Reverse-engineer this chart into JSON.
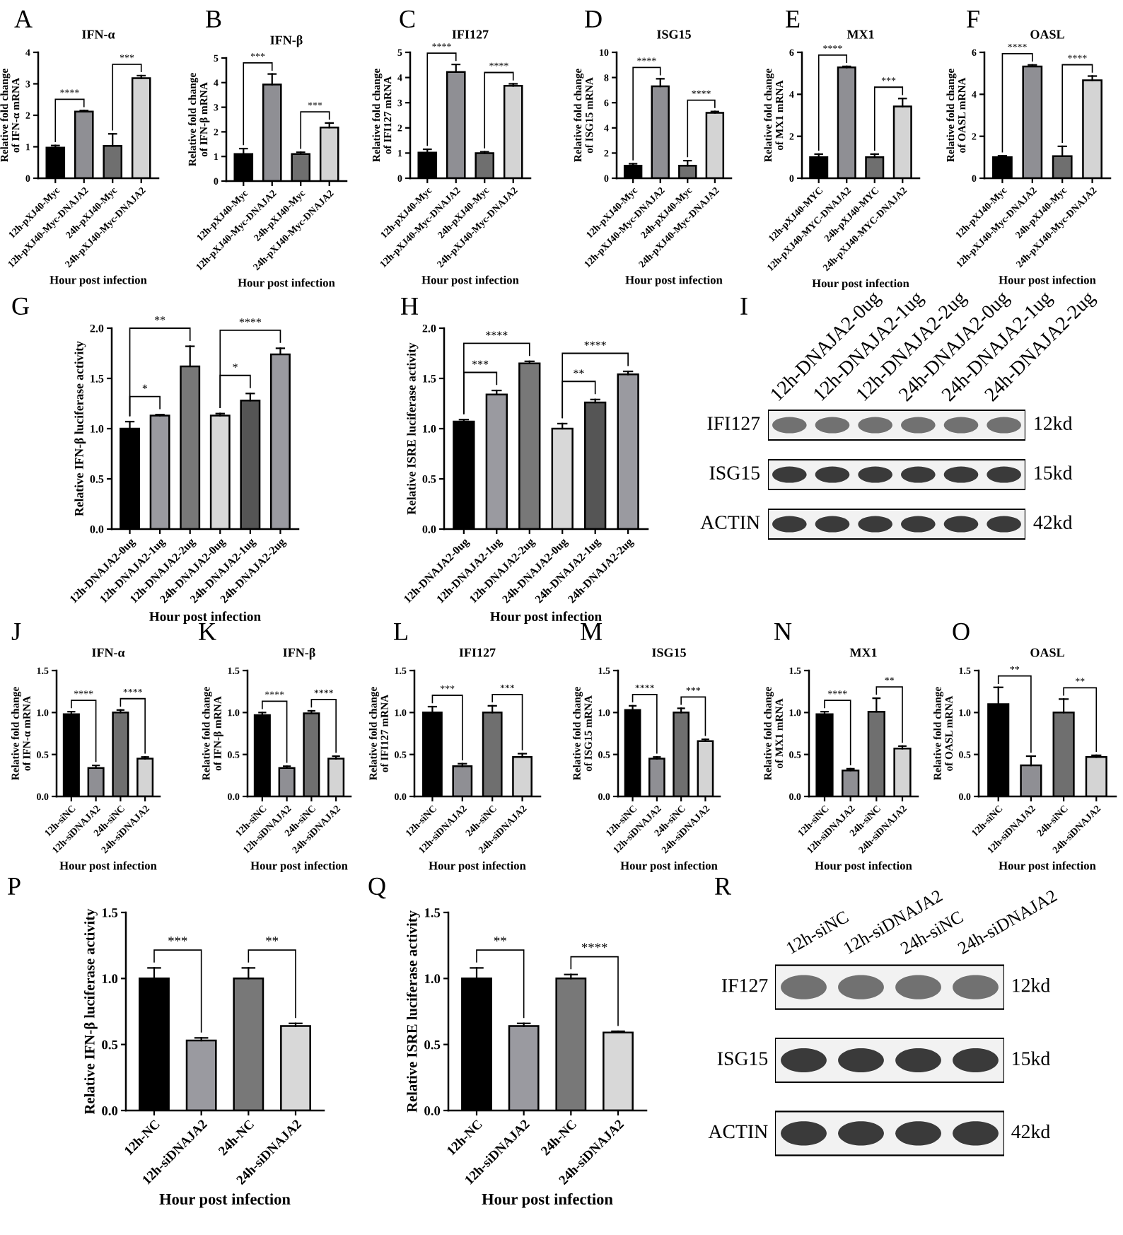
{
  "chart_data": [
    {
      "type": "bar",
      "title": "IFN-α",
      "ylabel": "Relative fold change\nof IFN-α mRNA",
      "xlabel": "Hour post infection",
      "categories": [
        "12h-pXJ40-Myc",
        "12h-pXJ40-Myc-DNAJA2",
        "24h-pXJ40-Myc",
        "24h-pXJ40-Myc-DNAJA2"
      ],
      "values": [
        0.97,
        2.12,
        1.03,
        3.18
      ],
      "errors": [
        [
          0.97,
          1.04
        ],
        [
          2.12,
          2.15
        ],
        [
          1.03,
          1.41
        ],
        [
          3.18,
          3.26
        ]
      ],
      "colors": [
        "#000000",
        "#8f8f94",
        "#6f6f6f",
        "#d4d4d4"
      ],
      "ylim": [
        0,
        4
      ],
      "yticks": [
        0,
        1,
        2,
        3,
        4
      ],
      "annotations": [
        "A",
        "****",
        "***"
      ]
    },
    {
      "type": "bar",
      "title": "IFN-β",
      "ylabel": "Relative fold change\nof IFN-β mRNA",
      "xlabel": "Hour post infection",
      "categories": [
        "12h-pXJ40-Myc",
        "12h-pXJ40-Myc-DNAJA2",
        "24h-pXJ40-Myc",
        "24h-pXJ40-Myc-DNAJA2"
      ],
      "values": [
        1.1,
        3.92,
        1.1,
        2.18
      ],
      "errors": [
        [
          1.1,
          1.32
        ],
        [
          3.92,
          4.35
        ],
        [
          1.1,
          1.17
        ],
        [
          2.18,
          2.36
        ]
      ],
      "colors": [
        "#000000",
        "#8f8f94",
        "#6f6f6f",
        "#d4d4d4"
      ],
      "ylim": [
        0,
        5
      ],
      "yticks": [
        0,
        1,
        2,
        3,
        4,
        5
      ],
      "annotations": [
        "B",
        "***",
        "***"
      ]
    },
    {
      "type": "bar",
      "title": "IFI127",
      "ylabel": "Relative fold change\nof IFI127 mRNA",
      "xlabel": "Hour post infection",
      "categories": [
        "12h-pXJ40-Myc",
        "12h-pXJ40-Myc-DNAJA2",
        "24h-pXJ40-Myc",
        "24h-pXJ40-Myc-DNAJA2"
      ],
      "values": [
        1.02,
        4.22,
        1.0,
        3.67
      ],
      "errors": [
        [
          1.02,
          1.15
        ],
        [
          4.22,
          4.52
        ],
        [
          1.0,
          1.05
        ],
        [
          3.67,
          3.75
        ]
      ],
      "colors": [
        "#000000",
        "#8f8f94",
        "#6f6f6f",
        "#d4d4d4"
      ],
      "ylim": [
        0,
        5
      ],
      "yticks": [
        0,
        1,
        2,
        3,
        4,
        5
      ],
      "annotations": [
        "C",
        "****",
        "****"
      ]
    },
    {
      "type": "bar",
      "title": "ISG15",
      "ylabel": "Relative fold change\nof ISG15 mRNA",
      "xlabel": "Hour post infection",
      "categories": [
        "12h-pXJ40-Myc",
        "12h-pXJ40-Myc-DNAJA2",
        "24h-pXJ40-Myc",
        "24h-pXJ40-Myc-DNAJA2"
      ],
      "values": [
        1.0,
        7.3,
        1.0,
        5.2
      ],
      "errors": [
        [
          1.0,
          1.15
        ],
        [
          7.3,
          7.9
        ],
        [
          1.0,
          1.4
        ],
        [
          5.2,
          5.3
        ]
      ],
      "colors": [
        "#000000",
        "#8f8f94",
        "#6f6f6f",
        "#d4d4d4"
      ],
      "ylim": [
        0,
        10
      ],
      "yticks": [
        0,
        2,
        4,
        6,
        8,
        10
      ],
      "annotations": [
        "D",
        "****",
        "****"
      ]
    },
    {
      "type": "bar",
      "title": "MX1",
      "ylabel": "Relative fold change\nof MX1 mRNA",
      "xlabel": "Hour post infection",
      "categories": [
        "12h-pXJ40-MYC",
        "12h-pXJ40-MYC-DNAJA2",
        "24h-pXJ40-MYC",
        "24h-pXJ40-MYC-DNAJA2"
      ],
      "values": [
        1.0,
        5.28,
        1.0,
        3.42
      ],
      "errors": [
        [
          1.0,
          1.15
        ],
        [
          5.28,
          5.33
        ],
        [
          1.0,
          1.15
        ],
        [
          3.42,
          3.8
        ]
      ],
      "colors": [
        "#000000",
        "#8f8f94",
        "#6f6f6f",
        "#d4d4d4"
      ],
      "ylim": [
        0,
        6
      ],
      "yticks": [
        0,
        2,
        4,
        6
      ],
      "annotations": [
        "E",
        "****",
        "***"
      ]
    },
    {
      "type": "bar",
      "title": "OASL",
      "ylabel": "Relative fold change\nof OASL mRNA",
      "xlabel": "Hour post infection",
      "categories": [
        "12h-pXJ40-Myc",
        "12h-pXJ40-Myc-DNAJA2",
        "24h-pXJ40-Myc",
        "24h-pXJ40-Myc-DNAJA2"
      ],
      "values": [
        1.0,
        5.33,
        1.05,
        4.67
      ],
      "errors": [
        [
          1.0,
          1.07
        ],
        [
          5.33,
          5.4
        ],
        [
          1.05,
          1.52
        ],
        [
          4.67,
          4.87
        ]
      ],
      "colors": [
        "#000000",
        "#8f8f94",
        "#6f6f6f",
        "#d4d4d4"
      ],
      "ylim": [
        0,
        6
      ],
      "yticks": [
        0,
        2,
        4,
        6
      ],
      "annotations": [
        "F",
        "****",
        "****"
      ]
    },
    {
      "type": "bar",
      "ylabel": "Relative IFN-β luciferase activity",
      "xlabel": "Hour post infection",
      "categories": [
        "12h-DNAJA2-0ug",
        "12h-DNAJA2-1ug",
        "12h-DNAJA2-2ug",
        "24h-DNAJA2-0ug",
        "24h-DNAJA2-1ug",
        "24h-DNAJA2-2ug"
      ],
      "values": [
        1.0,
        1.13,
        1.62,
        1.13,
        1.28,
        1.74
      ],
      "errors": [
        [
          1.0,
          1.07
        ],
        [
          1.13,
          1.14
        ],
        [
          1.62,
          1.82
        ],
        [
          1.13,
          1.15
        ],
        [
          1.28,
          1.35
        ],
        [
          1.74,
          1.8
        ]
      ],
      "colors": [
        "#000000",
        "#9a9aa0",
        "#787878",
        "#d8d8d8",
        "#555555",
        "#9a9aa0"
      ],
      "ylim": [
        0,
        2
      ],
      "yticks": [
        {
          "value": 0,
          "label": "0.0"
        },
        {
          "value": 0.5,
          "label": "0.5"
        },
        {
          "value": 1,
          "label": "1.0"
        },
        {
          "value": 1.5,
          "label": "1.5"
        },
        {
          "value": 2,
          "label": "2.0"
        }
      ],
      "annotations": [
        "G",
        "*",
        "**",
        "*",
        "****"
      ]
    },
    {
      "type": "bar",
      "ylabel": "Relative ISRE luciferase activity",
      "xlabel": "Hour post infection",
      "categories": [
        "12h-DNAJA2-0ug",
        "12h-DNAJA2-1ug",
        "12h-DNAJA2-2ug",
        "24h-DNAJA2-0ug",
        "24h-DNAJA2-1ug",
        "24h-DNAJA2-2ug"
      ],
      "values": [
        1.07,
        1.34,
        1.65,
        1.0,
        1.26,
        1.54
      ],
      "errors": [
        [
          1.07,
          1.09
        ],
        [
          1.34,
          1.38
        ],
        [
          1.65,
          1.67
        ],
        [
          1.0,
          1.05
        ],
        [
          1.26,
          1.29
        ],
        [
          1.54,
          1.57
        ]
      ],
      "colors": [
        "#000000",
        "#9a9aa0",
        "#787878",
        "#d8d8d8",
        "#555555",
        "#9a9aa0"
      ],
      "ylim": [
        0,
        2
      ],
      "yticks": [
        {
          "value": 0,
          "label": "0.0"
        },
        {
          "value": 0.5,
          "label": "0.5"
        },
        {
          "value": 1,
          "label": "1.0"
        },
        {
          "value": 1.5,
          "label": "1.5"
        },
        {
          "value": 2,
          "label": "2.0"
        }
      ],
      "annotations": [
        "H",
        "***",
        "****",
        "**",
        "****"
      ]
    },
    {
      "type": "other",
      "categories": [
        "12h-DNAJA2-0ug",
        "12h-DNAJA2-1ug",
        "12h-DNAJA2-2ug",
        "24h-DNAJA2-0ug",
        "24h-DNAJA2-1ug",
        "24h-DNAJA2-2ug"
      ],
      "y_categories": [
        "IFI127",
        "ISG15",
        "ACTIN"
      ],
      "y2_categories": [
        "12kd",
        "15kd",
        "42kd"
      ],
      "annotations": [
        "I"
      ]
    },
    {
      "type": "bar",
      "title": "IFN-α",
      "ylabel": "Relative fold change\nof IFN-α mRNA",
      "xlabel": "Hour post infection",
      "categories": [
        "12h-siNC",
        "12h-siDNAJA2",
        "24h-siNC",
        "24h-siDNAJA2"
      ],
      "values": [
        0.98,
        0.34,
        1.0,
        0.45
      ],
      "errors": [
        [
          0.98,
          1.01
        ],
        [
          0.34,
          0.37
        ],
        [
          1.0,
          1.03
        ],
        [
          0.45,
          0.47
        ]
      ],
      "colors": [
        "#000000",
        "#8f8f94",
        "#6f6f6f",
        "#d4d4d4"
      ],
      "ylim": [
        0,
        1.5
      ],
      "yticks": [
        {
          "value": 0,
          "label": "0.0"
        },
        {
          "value": 0.5,
          "label": "0.5"
        },
        {
          "value": 1,
          "label": "1.0"
        },
        {
          "value": 1.5,
          "label": "1.5"
        }
      ],
      "annotations": [
        "J",
        "****",
        "****"
      ]
    },
    {
      "type": "bar",
      "title": "IFN-β",
      "ylabel": "Relative fold change\nof IFN-β mRNA",
      "xlabel": "Hour post infection",
      "categories": [
        "12h-siNC",
        "12h-siDNAJA2",
        "24h-siNC",
        "24h-siDNAJA2"
      ],
      "values": [
        0.97,
        0.34,
        0.99,
        0.45
      ],
      "errors": [
        [
          0.97,
          1.0
        ],
        [
          0.34,
          0.36
        ],
        [
          0.99,
          1.02
        ],
        [
          0.45,
          0.48
        ]
      ],
      "colors": [
        "#000000",
        "#8f8f94",
        "#6f6f6f",
        "#d4d4d4"
      ],
      "ylim": [
        0,
        1.5
      ],
      "yticks": [
        {
          "value": 0,
          "label": "0.0"
        },
        {
          "value": 0.5,
          "label": "0.5"
        },
        {
          "value": 1,
          "label": "1.0"
        },
        {
          "value": 1.5,
          "label": "1.5"
        }
      ],
      "annotations": [
        "K",
        "****",
        "****"
      ]
    },
    {
      "type": "bar",
      "title": "IFI127",
      "ylabel": "Relative fold change\nof IFI127 mRNA",
      "xlabel": "Hour post infection",
      "categories": [
        "12h-siNC",
        "12h-siDNAJA2",
        "24h-siNC",
        "24h-siDNAJA2"
      ],
      "values": [
        1.0,
        0.36,
        1.0,
        0.47
      ],
      "errors": [
        [
          1.0,
          1.07
        ],
        [
          0.36,
          0.39
        ],
        [
          1.0,
          1.08
        ],
        [
          0.47,
          0.51
        ]
      ],
      "colors": [
        "#000000",
        "#8f8f94",
        "#6f6f6f",
        "#d4d4d4"
      ],
      "ylim": [
        0,
        1.5
      ],
      "yticks": [
        {
          "value": 0,
          "label": "0.0"
        },
        {
          "value": 0.5,
          "label": "0.5"
        },
        {
          "value": 1,
          "label": "1.0"
        },
        {
          "value": 1.5,
          "label": "1.5"
        }
      ],
      "annotations": [
        "L",
        "***",
        "***"
      ]
    },
    {
      "type": "bar",
      "title": "ISG15",
      "ylabel": "Relative fold change\nof ISG15 mRNA",
      "xlabel": "Hour post infection",
      "categories": [
        "12h-siNC",
        "12h-siDNAJA2",
        "24h-siNC",
        "24h-siDNAJA2"
      ],
      "values": [
        1.03,
        0.45,
        1.0,
        0.66
      ],
      "errors": [
        [
          1.03,
          1.08
        ],
        [
          0.45,
          0.47
        ],
        [
          1.0,
          1.05
        ],
        [
          0.66,
          0.68
        ]
      ],
      "colors": [
        "#000000",
        "#8f8f94",
        "#6f6f6f",
        "#d4d4d4"
      ],
      "ylim": [
        0,
        1.5
      ],
      "yticks": [
        {
          "value": 0,
          "label": "0.0"
        },
        {
          "value": 0.5,
          "label": "0.5"
        },
        {
          "value": 1,
          "label": "1.0"
        },
        {
          "value": 1.5,
          "label": "1.5"
        }
      ],
      "annotations": [
        "M",
        "****",
        "***"
      ]
    },
    {
      "type": "bar",
      "title": "MX1",
      "ylabel": "Relative fold change\nof MX1 mRNA",
      "xlabel": "Hour post infection",
      "categories": [
        "12h-siNC",
        "12h-siDNAJA2",
        "24h-siNC",
        "24h-siDNAJA2"
      ],
      "values": [
        0.98,
        0.31,
        1.01,
        0.57
      ],
      "errors": [
        [
          0.98,
          1.01
        ],
        [
          0.31,
          0.33
        ],
        [
          1.01,
          1.17
        ],
        [
          0.57,
          0.6
        ]
      ],
      "colors": [
        "#000000",
        "#8f8f94",
        "#6f6f6f",
        "#d4d4d4"
      ],
      "ylim": [
        0,
        1.5
      ],
      "yticks": [
        {
          "value": 0,
          "label": "0.0"
        },
        {
          "value": 0.5,
          "label": "0.5"
        },
        {
          "value": 1,
          "label": "1.0"
        },
        {
          "value": 1.5,
          "label": "1.5"
        }
      ],
      "annotations": [
        "N",
        "****",
        "**"
      ]
    },
    {
      "type": "bar",
      "title": "OASL",
      "ylabel": "Relative fold change\nof OASL mRNA",
      "xlabel": "Hour post infection",
      "categories": [
        "12h-siNC",
        "12h-siDNAJA2",
        "24h-siNC",
        "24h-siDNAJA2"
      ],
      "values": [
        1.1,
        0.37,
        1.0,
        0.47
      ],
      "errors": [
        [
          1.1,
          1.3
        ],
        [
          0.37,
          0.48
        ],
        [
          1.0,
          1.16
        ],
        [
          0.47,
          0.49
        ]
      ],
      "colors": [
        "#000000",
        "#8f8f94",
        "#6f6f6f",
        "#d4d4d4"
      ],
      "ylim": [
        0,
        1.5
      ],
      "yticks": [
        {
          "value": 0,
          "label": "0.0"
        },
        {
          "value": 0.5,
          "label": "0.5"
        },
        {
          "value": 1,
          "label": "1.0"
        },
        {
          "value": 1.5,
          "label": "1.5"
        }
      ],
      "annotations": [
        "O",
        "**",
        "**"
      ]
    },
    {
      "type": "bar",
      "ylabel": "Relative IFN-β luciferase activity",
      "xlabel": "Hour post infection",
      "categories": [
        "12h-NC",
        "12h-siDNAJA2",
        "24h-NC",
        "24h-siDNAJA2"
      ],
      "values": [
        1.0,
        0.53,
        1.0,
        0.64
      ],
      "errors": [
        [
          1.0,
          1.08
        ],
        [
          0.53,
          0.55
        ],
        [
          1.0,
          1.08
        ],
        [
          0.64,
          0.66
        ]
      ],
      "colors": [
        "#000000",
        "#9a9aa0",
        "#787878",
        "#d8d8d8"
      ],
      "ylim": [
        0,
        1.5
      ],
      "yticks": [
        {
          "value": 0,
          "label": "0.0"
        },
        {
          "value": 0.5,
          "label": "0.5"
        },
        {
          "value": 1,
          "label": "1.0"
        },
        {
          "value": 1.5,
          "label": "1.5"
        }
      ],
      "annotations": [
        "P",
        "***",
        "**"
      ]
    },
    {
      "type": "bar",
      "ylabel": "Relative ISRE luciferase activity",
      "xlabel": "Hour post infection",
      "categories": [
        "12h-NC",
        "12h-siDNAJA2",
        "24h-NC",
        "24h-siDNAJA2"
      ],
      "values": [
        1.0,
        0.64,
        1.0,
        0.59
      ],
      "errors": [
        [
          1.0,
          1.08
        ],
        [
          0.64,
          0.66
        ],
        [
          1.0,
          1.03
        ],
        [
          0.59,
          0.6
        ]
      ],
      "colors": [
        "#000000",
        "#9a9aa0",
        "#787878",
        "#d8d8d8"
      ],
      "ylim": [
        0,
        1.5
      ],
      "yticks": [
        {
          "value": 0,
          "label": "0.0"
        },
        {
          "value": 0.5,
          "label": "0.5"
        },
        {
          "value": 1,
          "label": "1.0"
        },
        {
          "value": 1.5,
          "label": "1.5"
        }
      ],
      "annotations": [
        "Q",
        "**",
        "****"
      ]
    },
    {
      "type": "other",
      "categories": [
        "12h-siNC",
        "12h-siDNAJA2",
        "24h-siNC",
        "24h-siDNAJA2"
      ],
      "y_categories": [
        "IF127",
        "ISG15",
        "ACTIN"
      ],
      "y2_categories": [
        "12kd",
        "15kd",
        "42kd"
      ],
      "annotations": [
        "R"
      ]
    }
  ]
}
